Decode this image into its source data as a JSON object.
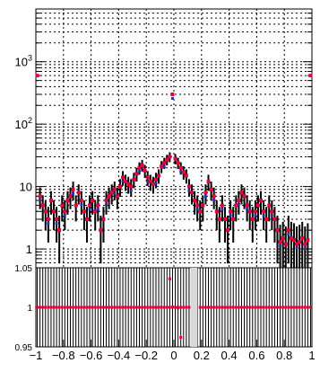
{
  "chart_data": [
    {
      "type": "scatter",
      "title": "",
      "xlabel": "",
      "ylabel": "",
      "yscale": "log",
      "xlim": [
        -1,
        1
      ],
      "ylim": [
        0.5,
        7000
      ],
      "grid": true,
      "y_tick_labels": [
        {
          "base": "10",
          "exp": "3",
          "value": 1000
        },
        {
          "base": "10",
          "exp": "2",
          "value": 100
        },
        {
          "base": "10",
          "exp": "",
          "value": 10
        },
        {
          "base": "1",
          "exp": "",
          "value": 1
        }
      ],
      "series": [
        {
          "marker_color": "#e8003a",
          "x": [
            -0.99,
            -0.97,
            -0.95,
            -0.93,
            -0.91,
            -0.89,
            -0.87,
            -0.85,
            -0.83,
            -0.81,
            -0.79,
            -0.77,
            -0.75,
            -0.73,
            -0.71,
            -0.69,
            -0.67,
            -0.65,
            -0.63,
            -0.61,
            -0.59,
            -0.57,
            -0.55,
            -0.53,
            -0.51,
            -0.49,
            -0.47,
            -0.45,
            -0.43,
            -0.41,
            -0.39,
            -0.37,
            -0.35,
            -0.33,
            -0.31,
            -0.29,
            -0.27,
            -0.25,
            -0.23,
            -0.21,
            -0.19,
            -0.17,
            -0.15,
            -0.13,
            -0.11,
            -0.09,
            -0.07,
            -0.05,
            -0.03,
            -0.01,
            0.01,
            0.03,
            0.05,
            0.07,
            0.09,
            0.11,
            0.13,
            0.15,
            0.17,
            0.19,
            0.21,
            0.23,
            0.25,
            0.27,
            0.29,
            0.31,
            0.33,
            0.35,
            0.37,
            0.39,
            0.41,
            0.43,
            0.45,
            0.47,
            0.49,
            0.51,
            0.53,
            0.55,
            0.57,
            0.59,
            0.61,
            0.63,
            0.65,
            0.67,
            0.69,
            0.71,
            0.73,
            0.75,
            0.77,
            0.79,
            0.81,
            0.83,
            0.85,
            0.87,
            0.89,
            0.91,
            0.93,
            0.95,
            0.97,
            0.99
          ],
          "y": [
            600,
            7,
            5,
            4,
            3,
            6,
            4,
            3,
            2,
            5,
            4,
            6,
            7,
            9,
            5,
            8,
            6,
            4,
            3,
            5,
            6,
            4,
            5,
            2,
            3,
            6,
            7,
            8,
            9,
            7,
            10,
            14,
            12,
            11,
            10,
            13,
            16,
            20,
            22,
            18,
            14,
            12,
            11,
            13,
            15,
            21,
            24,
            27,
            30,
            300,
            28,
            24,
            20,
            17,
            15,
            10,
            8,
            6,
            5,
            4,
            5,
            8,
            12,
            9,
            7,
            4,
            3,
            5,
            3,
            2,
            4,
            3,
            5,
            6,
            8,
            7,
            5,
            4,
            3,
            4,
            5,
            6,
            4,
            3,
            5,
            4,
            3,
            2,
            1.3,
            1.5,
            1.2,
            2,
            1.5,
            1.4,
            1.2,
            1.3,
            1.5,
            1.2,
            1.4,
            600
          ]
        }
      ]
    },
    {
      "type": "scatter",
      "title": "",
      "xlabel": "",
      "ylabel": "",
      "xlim": [
        -1,
        1
      ],
      "ylim": [
        0.95,
        1.05
      ],
      "grid": true,
      "y_tick_labels": [
        "1.05",
        "1",
        "0.95"
      ],
      "x_tick_labels": [
        "−1",
        "−0.8",
        "−0.6",
        "−0.4",
        "−0.2",
        "0",
        "0.2",
        "0.4",
        "0.6",
        "0.8",
        "1"
      ],
      "shaded_band_x": [
        0.12,
        0.17
      ],
      "series": [
        {
          "marker_color": "#e8003a",
          "values_note_outliers": [
            {
              "x": -0.01,
              "y": 1.0005
            },
            {
              "x": 0.03,
              "y": 0.999
            },
            {
              "x": 0.05,
              "y": 0.962
            },
            {
              "x": -0.03,
              "y": 1.036
            }
          ],
          "constant_y": 1.0
        }
      ]
    }
  ]
}
